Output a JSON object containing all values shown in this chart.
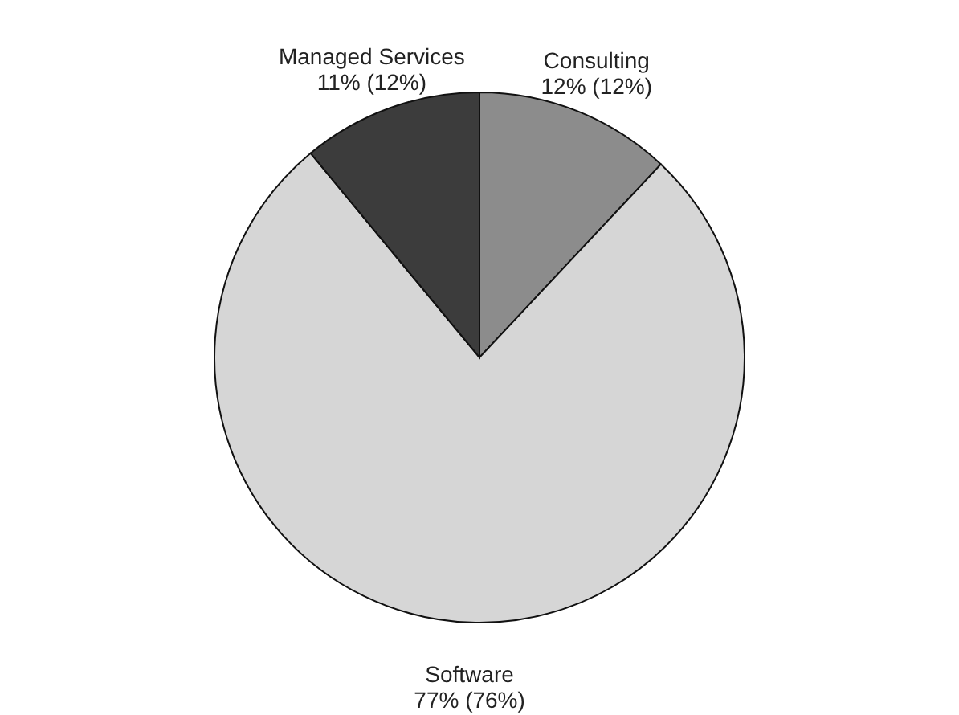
{
  "chart_data": {
    "type": "pie",
    "categories": [
      "Consulting",
      "Software",
      "Managed Services"
    ],
    "values": [
      12,
      77,
      11
    ],
    "colors": [
      "#8c8c8c",
      "#d6d6d6",
      "#3c3c3c"
    ],
    "value_labels": [
      "12% (12%)",
      "77% (76%)",
      "11% (12%)"
    ],
    "legend": false
  }
}
